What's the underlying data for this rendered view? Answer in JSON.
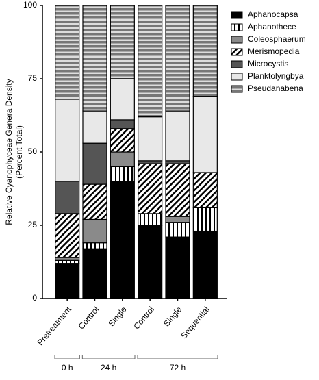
{
  "chart_data": {
    "type": "stacked_bar",
    "y_label": [
      "Relative Cyanophyceae Genera Density",
      "(Percent Total)"
    ],
    "categories": [
      "Pretreatment",
      "Control",
      "Single",
      "Control",
      "Single",
      "Sequential"
    ],
    "groups": [
      "0 h",
      "24 h",
      "72 h"
    ],
    "series": [
      {
        "name": "Aphanocapsa",
        "color": "#000000",
        "pattern": "solid",
        "values": [
          12,
          17,
          40,
          25,
          21,
          23
        ]
      },
      {
        "name": "Aphanothece",
        "color": "#000000",
        "pattern": "vertical",
        "values": [
          1,
          2,
          5,
          4,
          5,
          8
        ]
      },
      {
        "name": "Coleosphaerum",
        "color": "#8a8a8a",
        "pattern": "solid",
        "values": [
          1,
          8,
          5,
          0,
          2,
          0
        ]
      },
      {
        "name": "Merismopedia",
        "color": "#000000",
        "pattern": "diagonal",
        "values": [
          15,
          12,
          8,
          17,
          18,
          12
        ]
      },
      {
        "name": "Microcystis",
        "color": "#555555",
        "pattern": "solid",
        "values": [
          11,
          14,
          3,
          1,
          1,
          0
        ]
      },
      {
        "name": "Planktolyngbya",
        "color": "#e8e8e8",
        "pattern": "solid",
        "values": [
          28,
          11,
          14,
          15,
          17,
          26
        ]
      },
      {
        "name": "Pseudanabena",
        "color": "#777777",
        "pattern": "horizontal",
        "values": [
          32,
          36,
          25,
          38,
          36,
          31
        ]
      }
    ],
    "ylim": [
      0,
      100
    ],
    "yticks": [
      0,
      25,
      50,
      75,
      100
    ],
    "legend": "top-right"
  }
}
